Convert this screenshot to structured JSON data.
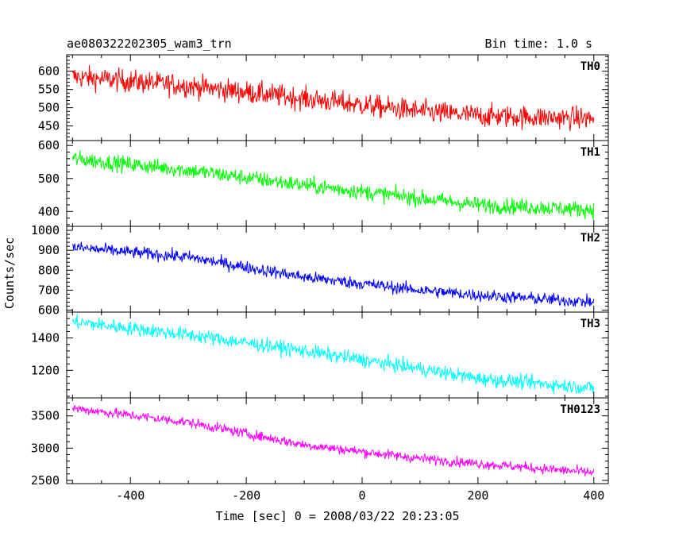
{
  "header": {
    "title": "ae080322202305_wam3_trn",
    "bin_time": "Bin time: 1.0 s"
  },
  "axes": {
    "xlabel": "Time [sec] 0 = 2008/03/22 20:23:05",
    "ylabel": "Counts/sec"
  },
  "chart_data": {
    "type": "line",
    "title": "ae080322202305_wam3_trn",
    "subtitle": "Bin time: 1.0 s",
    "xlabel": "Time [sec] 0 = 2008/03/22 20:23:05",
    "ylabel": "Counts/sec",
    "xlim": [
      -510,
      425
    ],
    "x_range": [
      -500,
      400
    ],
    "xticks": [
      -400,
      -200,
      0,
      200,
      400
    ],
    "grid": false,
    "series": [
      {
        "name": "TH0",
        "color": "#ff0000",
        "ylim": [
          410,
          645
        ],
        "yticks": [
          450,
          500,
          550,
          600
        ],
        "trend": [
          [
            -500,
            585
          ],
          [
            -300,
            560
          ],
          [
            -100,
            525
          ],
          [
            100,
            490
          ],
          [
            200,
            478
          ],
          [
            400,
            470
          ]
        ],
        "noise": 28
      },
      {
        "name": "TH1",
        "color": "#00ff00",
        "ylim": [
          355,
          615
        ],
        "yticks": [
          400,
          500,
          600
        ],
        "trend": [
          [
            -500,
            560
          ],
          [
            -300,
            525
          ],
          [
            -100,
            480
          ],
          [
            100,
            440
          ],
          [
            200,
            420
          ],
          [
            400,
            405
          ]
        ],
        "noise": 22
      },
      {
        "name": "TH2",
        "color": "#0000ff",
        "ylim": [
          590,
          1020
        ],
        "yticks": [
          600,
          700,
          800,
          900,
          1000
        ],
        "trend": [
          [
            -500,
            915
          ],
          [
            -300,
            865
          ],
          [
            -100,
            765
          ],
          [
            100,
            700
          ],
          [
            200,
            675
          ],
          [
            400,
            640
          ]
        ],
        "noise": 28
      },
      {
        "name": "TH3",
        "color": "#00ffff",
        "ylim": [
          1030,
          1560
        ],
        "yticks": [
          1200,
          1400
        ],
        "trend": [
          [
            -500,
            1500
          ],
          [
            -300,
            1420
          ],
          [
            -100,
            1320
          ],
          [
            100,
            1210
          ],
          [
            200,
            1150
          ],
          [
            400,
            1090
          ]
        ],
        "noise": 40
      },
      {
        "name": "TH0123",
        "color": "#ff00ff",
        "ylim": [
          2450,
          3780
        ],
        "yticks": [
          2500,
          3000,
          3500
        ],
        "trend": [
          [
            -500,
            3620
          ],
          [
            -300,
            3400
          ],
          [
            -100,
            3050
          ],
          [
            100,
            2840
          ],
          [
            200,
            2760
          ],
          [
            400,
            2620
          ]
        ],
        "noise": 70
      }
    ]
  }
}
